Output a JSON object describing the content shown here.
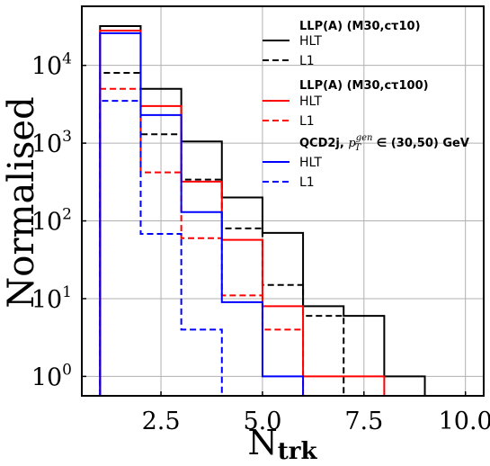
{
  "chart_data": {
    "type": "histogram",
    "xlabel": "N",
    "xlabel_sub": "trk",
    "ylabel": "Normalised",
    "yscale": "log",
    "xlim": [
      0.55,
      10.45
    ],
    "ylim_exp": [
      -0.25,
      4.76
    ],
    "grid": true,
    "legend_position": "upper-right",
    "xticks": [
      "2.5",
      "5.0",
      "7.5",
      "10.0"
    ],
    "xtick_values": [
      2.5,
      5.0,
      7.5,
      10.0
    ],
    "yticks": [
      {
        "base": "10",
        "exp": "0",
        "value": 1
      },
      {
        "base": "10",
        "exp": "1",
        "value": 10
      },
      {
        "base": "10",
        "exp": "2",
        "value": 100
      },
      {
        "base": "10",
        "exp": "3",
        "value": 1000
      },
      {
        "base": "10",
        "exp": "4",
        "value": 10000
      }
    ],
    "legend_groups": [
      {
        "head": "LLP(A) (M30,cτ10)"
      },
      {
        "head": "LLP(A) (M30,cτ100)"
      },
      {
        "head": "QCD2j, p_T^gen ∈ (30,50) GeV"
      }
    ],
    "series": [
      {
        "group": 0,
        "name": "HLT",
        "color": "#000000",
        "dashed": false,
        "edges": [
          1,
          2,
          3,
          4,
          5,
          6,
          7,
          8,
          9
        ],
        "values": [
          32000,
          5000,
          1050,
          200,
          70,
          8,
          6,
          1
        ]
      },
      {
        "group": 0,
        "name": "L1",
        "color": "#000000",
        "dashed": true,
        "edges": [
          1,
          2,
          3,
          4,
          5,
          6,
          7
        ],
        "values": [
          8000,
          1300,
          340,
          80,
          15,
          6
        ]
      },
      {
        "group": 1,
        "name": "HLT",
        "color": "#ff0000",
        "dashed": false,
        "edges": [
          1,
          2,
          3,
          4,
          5,
          6,
          8
        ],
        "values": [
          28000,
          3000,
          320,
          57,
          8,
          1
        ]
      },
      {
        "group": 1,
        "name": "L1",
        "color": "#ff0000",
        "dashed": true,
        "edges": [
          1,
          2,
          3,
          4,
          5,
          6
        ],
        "values": [
          5000,
          420,
          60,
          11,
          4
        ]
      },
      {
        "group": 2,
        "name": "HLT",
        "color": "#0000ff",
        "dashed": false,
        "edges": [
          1,
          2,
          3,
          4,
          5,
          6
        ],
        "values": [
          26000,
          2300,
          130,
          9,
          1
        ]
      },
      {
        "group": 2,
        "name": "L1",
        "color": "#0000ff",
        "dashed": true,
        "edges": [
          1,
          2,
          3,
          4
        ],
        "values": [
          3500,
          68,
          4
        ]
      }
    ]
  }
}
